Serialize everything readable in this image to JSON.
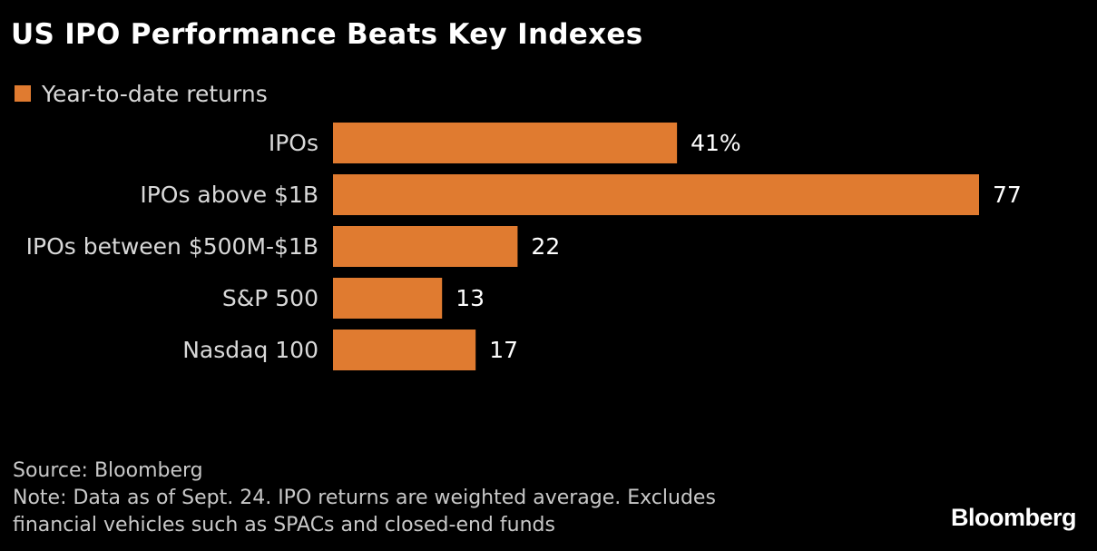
{
  "title": "US IPO Performance Beats Key Indexes",
  "legend": {
    "label": "Year-to-date returns",
    "color": "#e07b30"
  },
  "chart_data": {
    "type": "bar",
    "orientation": "horizontal",
    "title": "US IPO Performance Beats Key Indexes",
    "categories": [
      "IPOs",
      "IPOs above $1B",
      "IPOs between $500M-$1B",
      "S&P 500",
      "Nasdaq 100"
    ],
    "series": [
      {
        "name": "Year-to-date returns",
        "values": [
          41,
          77,
          22,
          13,
          17
        ],
        "value_labels": [
          "41%",
          "77",
          "22",
          "13",
          "17"
        ],
        "color": "#e07b30"
      }
    ],
    "xlim": [
      0,
      77
    ],
    "grid": false,
    "legend_position": "top-left",
    "xlabel": "",
    "ylabel": ""
  },
  "footer": {
    "source": "Source: Bloomberg",
    "note_line1": "Note: Data as of Sept. 24. IPO returns are weighted average. Excludes",
    "note_line2": "financial vehicles such as SPACs and closed-end funds"
  },
  "brand": "Bloomberg"
}
